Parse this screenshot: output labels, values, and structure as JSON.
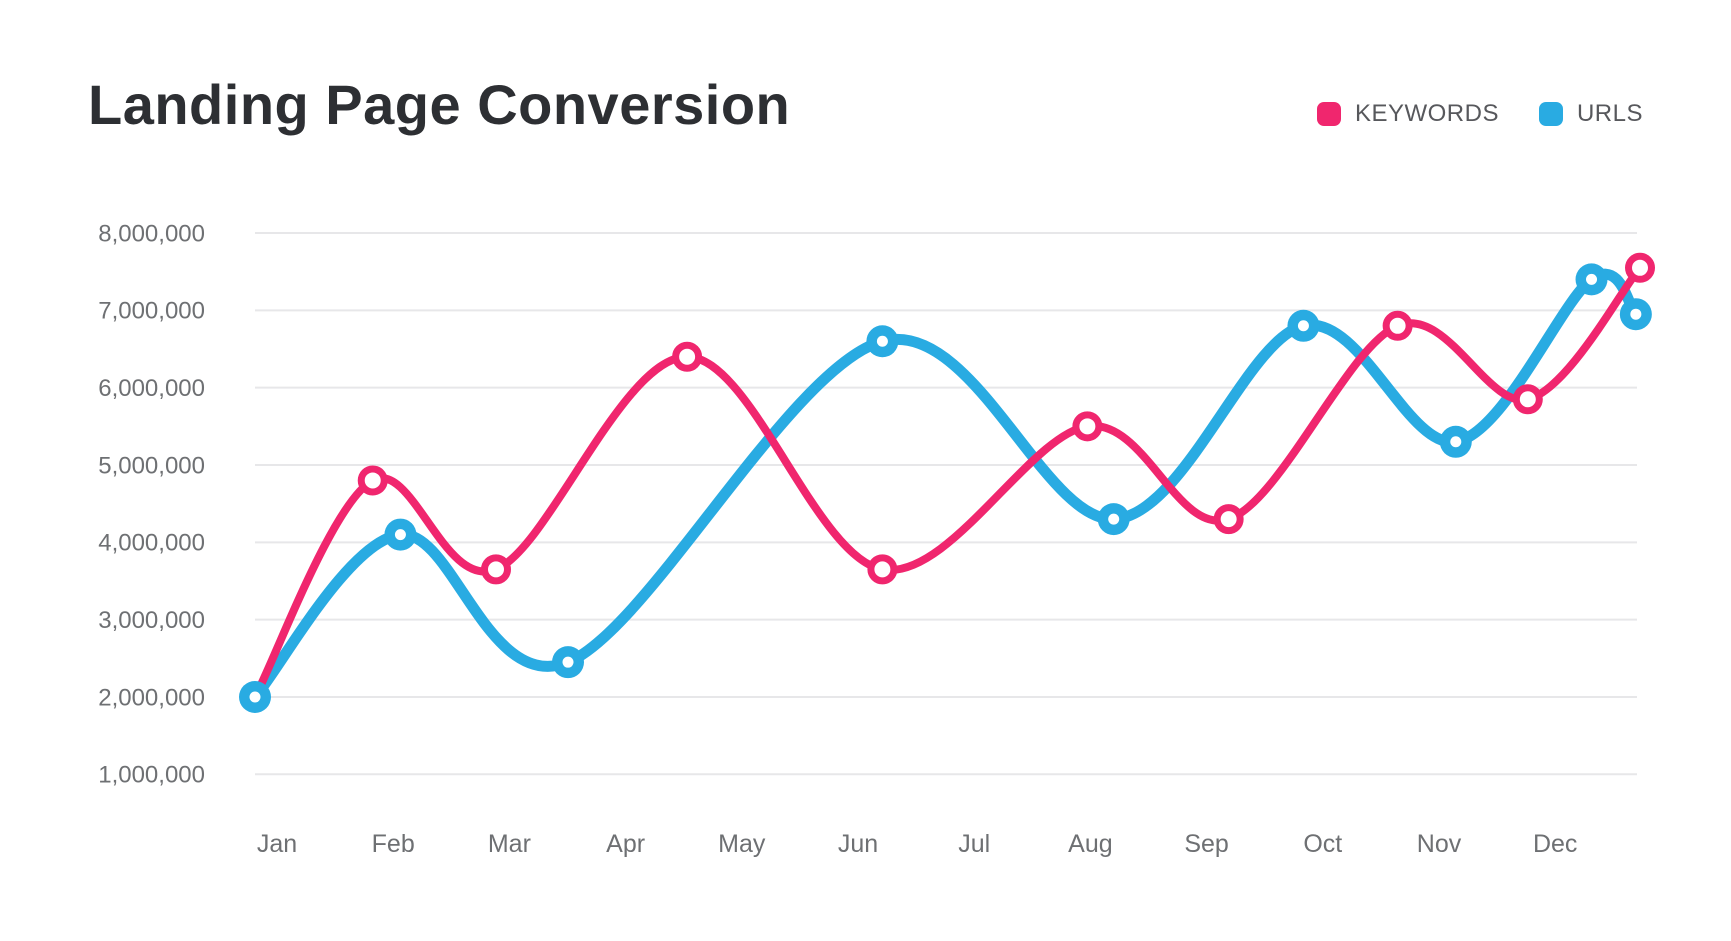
{
  "header": {
    "title": "Landing Page Conversion"
  },
  "legend": {
    "items": [
      {
        "label": "KEYWORDS",
        "color": "#f0266e"
      },
      {
        "label": "URLS",
        "color": "#29abe2"
      }
    ]
  },
  "chart_data": {
    "type": "line",
    "title": "Landing Page Conversion",
    "categories": [
      "Jan",
      "Feb",
      "Mar",
      "Apr",
      "May",
      "Jun",
      "Jul",
      "Aug",
      "Sep",
      "Oct",
      "Nov",
      "Dec"
    ],
    "y_ticks": [
      "8,000,000",
      "7,000,000",
      "6,000,000",
      "5,000,000",
      "4,000,000",
      "3,000,000",
      "2,000,000",
      "1,000,000"
    ],
    "ylim": [
      1000000,
      8000000
    ],
    "grid": "horizontal",
    "grid_color": "#e7e7e9",
    "tick_color": "#6e7073",
    "legend_position": "top-right",
    "curve": "smooth",
    "series": [
      {
        "name": "KEYWORDS",
        "color": "#f0266e",
        "stroke_width": 8,
        "marker": {
          "style": "ring",
          "radius": 11.5,
          "ring_width": 7,
          "fill": "#ffffff"
        },
        "points": [
          {
            "near_month": "Jan",
            "x_frac": 0.0,
            "value": 2000000
          },
          {
            "near_month": "Feb",
            "x_frac": 0.085,
            "value": 4800000
          },
          {
            "near_month": "Mar",
            "x_frac": 0.174,
            "value": 3650000
          },
          {
            "near_month": "Apr-May",
            "x_frac": 0.312,
            "value": 6400000
          },
          {
            "near_month": "Jun",
            "x_frac": 0.453,
            "value": 3650000
          },
          {
            "near_month": "Aug",
            "x_frac": 0.601,
            "value": 5500000
          },
          {
            "near_month": "Sep",
            "x_frac": 0.703,
            "value": 4300000
          },
          {
            "near_month": "Oct-Nov",
            "x_frac": 0.825,
            "value": 6800000
          },
          {
            "near_month": "Dec",
            "x_frac": 0.919,
            "value": 5850000
          },
          {
            "near_month": "end",
            "x_frac": 1.0,
            "value": 7550000
          }
        ]
      },
      {
        "name": "URLS",
        "color": "#29abe2",
        "stroke_width": 11,
        "marker": {
          "style": "dot",
          "radius": 16,
          "hole_radius": 5.5,
          "hole_fill": "#ffffff"
        },
        "points": [
          {
            "near_month": "Jan",
            "x_frac": 0.0,
            "value": 2000000
          },
          {
            "near_month": "Feb",
            "x_frac": 0.105,
            "value": 4100000
          },
          {
            "near_month": "Mar-Apr",
            "x_frac": 0.226,
            "value": 2450000
          },
          {
            "near_month": "Jun",
            "x_frac": 0.453,
            "value": 6600000
          },
          {
            "near_month": "Aug",
            "x_frac": 0.62,
            "value": 4300000
          },
          {
            "near_month": "Oct",
            "x_frac": 0.757,
            "value": 6800000
          },
          {
            "near_month": "Nov",
            "x_frac": 0.867,
            "value": 5300000
          },
          {
            "near_month": "Dec",
            "x_frac": 0.965,
            "value": 7400000
          },
          {
            "near_month": "end",
            "x_frac": 0.997,
            "value": 6950000
          }
        ]
      }
    ]
  }
}
